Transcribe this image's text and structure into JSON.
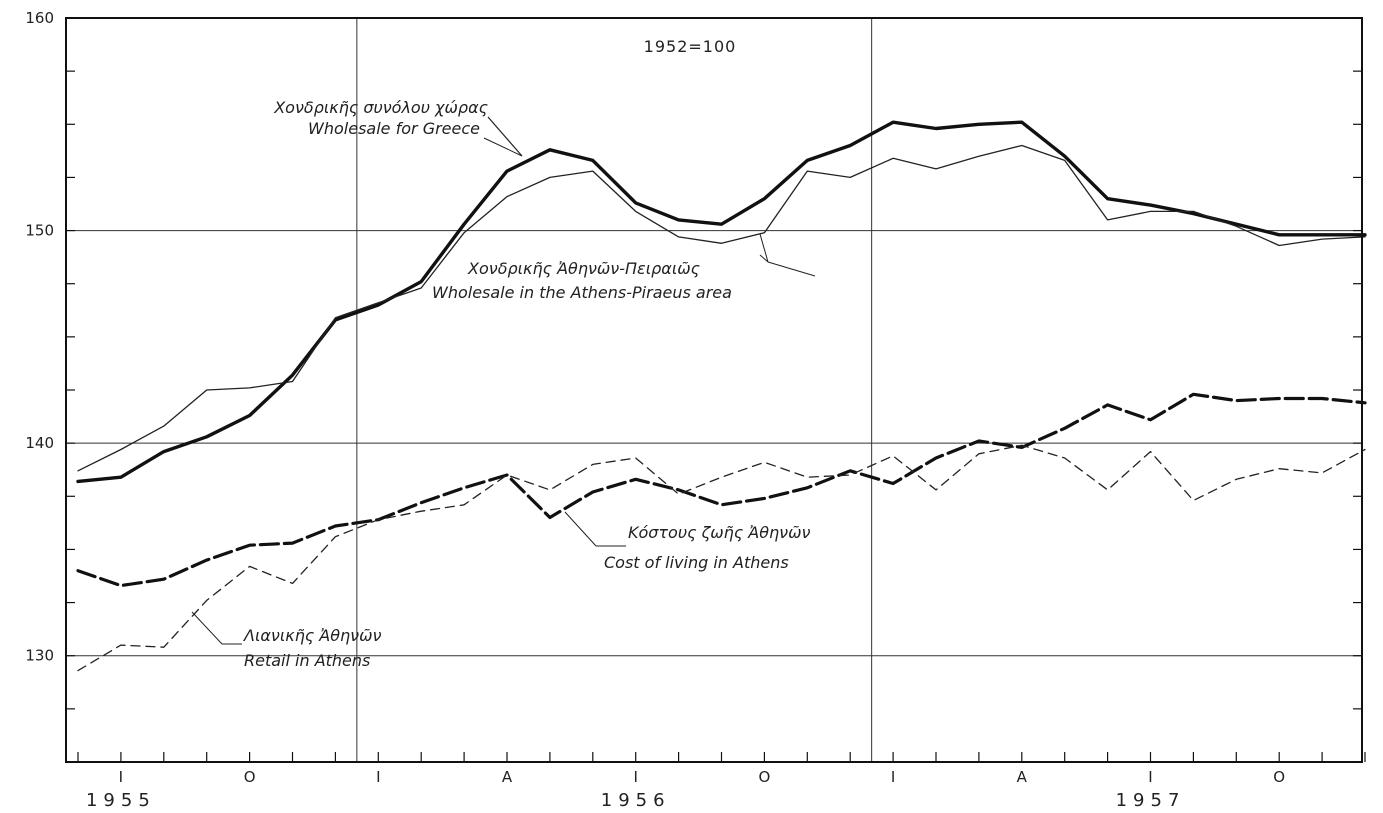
{
  "chart_data": {
    "type": "line",
    "subtitle": "1952=100",
    "ylim": [
      125,
      160
    ],
    "yticks": [
      130,
      140,
      150,
      160
    ],
    "grid": true,
    "x_months": [
      "1955-06",
      "1955-07",
      "1955-08",
      "1955-09",
      "1955-10",
      "1955-11",
      "1955-12",
      "1956-01",
      "1956-02",
      "1956-03",
      "1956-04",
      "1956-05",
      "1956-06",
      "1956-07",
      "1956-08",
      "1956-09",
      "1956-10",
      "1956-11",
      "1956-12",
      "1957-01",
      "1957-02",
      "1957-03",
      "1957-04",
      "1957-05",
      "1957-06",
      "1957-07",
      "1957-08",
      "1957-09",
      "1957-10",
      "1957-11",
      "1957-12"
    ],
    "x_tick_labels": [
      {
        "month": "1955-07",
        "label": "I"
      },
      {
        "month": "1955-10",
        "label": "O"
      },
      {
        "month": "1956-01",
        "label": "I"
      },
      {
        "month": "1956-04",
        "label": "A"
      },
      {
        "month": "1956-07",
        "label": "I"
      },
      {
        "month": "1956-10",
        "label": "O"
      },
      {
        "month": "1957-01",
        "label": "I"
      },
      {
        "month": "1957-04",
        "label": "A"
      },
      {
        "month": "1957-07",
        "label": "I"
      },
      {
        "month": "1957-10",
        "label": "O"
      }
    ],
    "year_labels": [
      {
        "month": "1955-07",
        "label": "1955"
      },
      {
        "month": "1956-07",
        "label": "1956"
      },
      {
        "month": "1957-07",
        "label": "1957"
      }
    ],
    "series": [
      {
        "style": "thick-solid",
        "values": [
          138.2,
          138.4,
          139.6,
          140.3,
          141.3,
          143.2,
          145.8,
          146.5,
          147.6,
          150.3,
          152.8,
          153.8,
          153.3,
          151.3,
          150.5,
          150.3,
          151.5,
          153.3,
          154.0,
          155.1,
          154.8,
          155.0,
          155.1,
          153.5,
          151.5,
          151.2,
          150.8,
          150.3,
          149.8,
          149.8,
          149.8
        ]
      },
      {
        "style": "thin-solid",
        "values": [
          138.7,
          139.7,
          140.8,
          142.5,
          142.6,
          142.9,
          145.9,
          146.6,
          147.3,
          149.9,
          151.6,
          152.5,
          152.8,
          150.9,
          149.7,
          149.4,
          149.9,
          152.8,
          152.5,
          153.4,
          152.9,
          153.5,
          154.0,
          153.3,
          150.5,
          150.9,
          150.9,
          150.2,
          149.3,
          149.6,
          149.7
        ]
      },
      {
        "style": "thick-dashed",
        "values": [
          134.0,
          133.3,
          133.6,
          134.5,
          135.2,
          135.3,
          136.1,
          136.4,
          137.2,
          137.9,
          138.5,
          136.5,
          137.7,
          138.3,
          137.8,
          137.1,
          137.4,
          137.9,
          138.7,
          138.1,
          139.3,
          140.1,
          139.8,
          140.7,
          141.8,
          141.1,
          142.3,
          142.0,
          142.1,
          142.1,
          141.9
        ]
      },
      {
        "style": "thin-dashed",
        "values": [
          129.3,
          130.5,
          130.4,
          132.6,
          134.2,
          133.4,
          135.6,
          136.4,
          136.8,
          137.1,
          138.5,
          137.8,
          139.0,
          139.3,
          137.6,
          138.4,
          139.1,
          138.4,
          138.5,
          139.4,
          137.8,
          139.5,
          139.9,
          139.3,
          137.8,
          139.6,
          137.3,
          138.3,
          138.8,
          138.6,
          139.7
        ]
      }
    ],
    "annotations": [
      {
        "series": 0,
        "lines": [
          "Χονδρικῆς συνόλου χώρας",
          "Wholesale for Greece"
        ]
      },
      {
        "series": 1,
        "lines": [
          "Χονδρικῆς Ἀθηνῶν-Πειραιῶς",
          "Wholesale in the Athens-Piraeus area"
        ]
      },
      {
        "series": 2,
        "lines": [
          "Κόστους ζωῆς Ἀθηνῶν",
          "Cost of living in Athens"
        ]
      },
      {
        "series": 3,
        "lines": [
          "Λιανικῆς Ἀθηνῶν",
          "Retail in Athens"
        ]
      }
    ]
  }
}
